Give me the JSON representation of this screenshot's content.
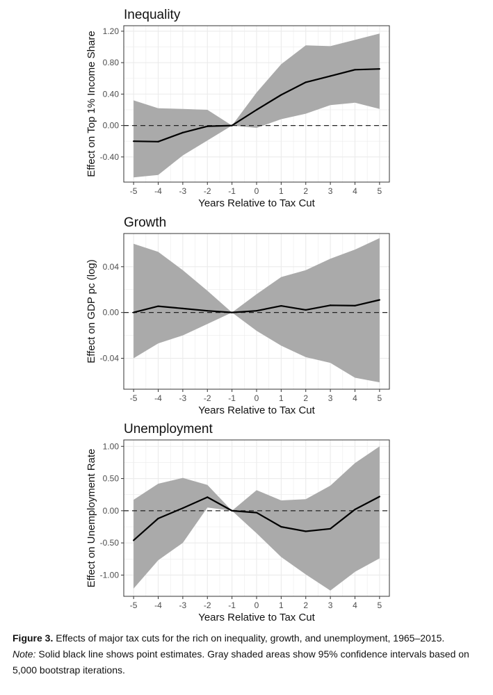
{
  "chart_data": [
    {
      "type": "area",
      "title": "Inequality",
      "xlabel": "Years Relative to Tax Cut",
      "ylabel": "Effect on Top 1% Income Share",
      "xlim": [
        -5.4,
        5.4
      ],
      "ylim": [
        -0.72,
        1.27
      ],
      "x": [
        -5,
        -4,
        -3,
        -2,
        -1,
        0,
        1,
        2,
        3,
        4,
        5
      ],
      "x_ticks": [
        "-5",
        "-4",
        "-3",
        "-2",
        "-1",
        "0",
        "1",
        "2",
        "3",
        "4",
        "5"
      ],
      "y_ticks": [
        1.2,
        0.8,
        0.4,
        0.0,
        -0.4
      ],
      "y_tick_labels": [
        "1.20",
        "0.80",
        "0.40",
        "0.00",
        "-0.40"
      ],
      "estimate": [
        -0.2,
        -0.205,
        -0.09,
        -0.01,
        0.0,
        0.2,
        0.39,
        0.55,
        0.63,
        0.71,
        0.72
      ],
      "ci_upper": [
        0.32,
        0.22,
        0.21,
        0.2,
        0.0,
        0.42,
        0.78,
        1.02,
        1.01,
        1.09,
        1.17
      ],
      "ci_lower": [
        -0.66,
        -0.63,
        -0.38,
        -0.19,
        0.0,
        -0.03,
        0.08,
        0.15,
        0.26,
        0.29,
        0.21
      ],
      "grid": true,
      "zero_line": "dashed",
      "colors": {
        "estimate": "#000000",
        "ci": "#aaaaaa",
        "grid": "#ebebeb",
        "border": "#333333"
      }
    },
    {
      "type": "area",
      "title": "Growth",
      "xlabel": "Years Relative to Tax Cut",
      "ylabel": "Effect on GDP pc (log)",
      "xlim": [
        -5.4,
        5.4
      ],
      "ylim": [
        -0.067,
        0.069
      ],
      "x": [
        -5,
        -4,
        -3,
        -2,
        -1,
        0,
        1,
        2,
        3,
        4,
        5
      ],
      "x_ticks": [
        "-5",
        "-4",
        "-3",
        "-2",
        "-1",
        "0",
        "1",
        "2",
        "3",
        "4",
        "5"
      ],
      "y_ticks": [
        0.04,
        0.0,
        -0.04
      ],
      "y_tick_labels": [
        "0.04",
        "0.00",
        "-0.04"
      ],
      "estimate": [
        0.0,
        0.0055,
        0.0035,
        0.0015,
        0.0,
        0.0015,
        0.0058,
        0.0023,
        0.0063,
        0.006,
        0.011
      ],
      "ci_upper": [
        0.06,
        0.053,
        0.037,
        0.019,
        0.0,
        0.016,
        0.031,
        0.037,
        0.047,
        0.055,
        0.065
      ],
      "ci_lower": [
        -0.04,
        -0.027,
        -0.02,
        -0.01,
        0.0,
        -0.016,
        -0.029,
        -0.039,
        -0.044,
        -0.057,
        -0.061
      ],
      "grid": true,
      "zero_line": "dashed",
      "colors": {
        "estimate": "#000000",
        "ci": "#aaaaaa",
        "grid": "#ebebeb",
        "border": "#333333"
      }
    },
    {
      "type": "area",
      "title": "Unemployment",
      "xlabel": "Years Relative to Tax Cut",
      "ylabel": "Effect on Unemployment Rate",
      "xlim": [
        -5.4,
        5.4
      ],
      "ylim": [
        -1.33,
        1.1
      ],
      "x": [
        -5,
        -4,
        -3,
        -2,
        -1,
        0,
        1,
        2,
        3,
        4,
        5
      ],
      "x_ticks": [
        "-5",
        "-4",
        "-3",
        "-2",
        "-1",
        "0",
        "1",
        "2",
        "3",
        "4",
        "5"
      ],
      "y_ticks": [
        1.0,
        0.5,
        0.0,
        -0.5,
        -1.0
      ],
      "y_tick_labels": [
        "1.00",
        "0.50",
        "0.00",
        "-0.50",
        "-1.00"
      ],
      "estimate": [
        -0.46,
        -0.12,
        0.04,
        0.21,
        0.0,
        -0.03,
        -0.25,
        -0.32,
        -0.28,
        0.02,
        0.22
      ],
      "ci_upper": [
        0.17,
        0.42,
        0.51,
        0.4,
        0.0,
        0.32,
        0.16,
        0.18,
        0.39,
        0.74,
        1.0
      ],
      "ci_lower": [
        -1.21,
        -0.77,
        -0.5,
        0.05,
        0.0,
        -0.35,
        -0.72,
        -0.99,
        -1.24,
        -0.95,
        -0.74
      ],
      "grid": true,
      "zero_line": "dashed",
      "colors": {
        "estimate": "#000000",
        "ci": "#aaaaaa",
        "grid": "#ebebeb",
        "border": "#333333"
      }
    }
  ],
  "caption": {
    "label": "Figure 3.",
    "text": "Effects of major tax cuts for the rich on inequality, growth, and unemployment, 1965–2015.",
    "note_label": "Note:",
    "note_text": "Solid black line shows point estimates. Gray shaded areas show 95% confidence intervals based on 5,000 bootstrap iterations."
  }
}
